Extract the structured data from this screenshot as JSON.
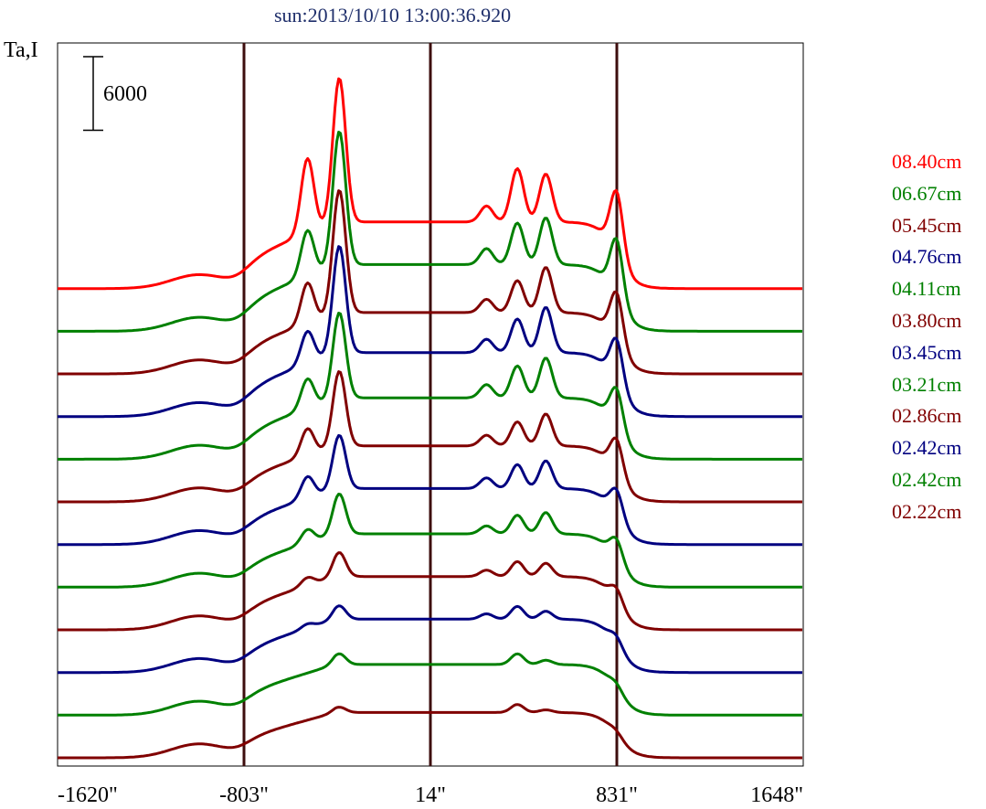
{
  "chart_data": {
    "type": "line",
    "title": "sun:2013/10/10 13:00:36.920",
    "ylabel": "Ta,I",
    "xlabel": "",
    "x_ticks": [
      "-1620\"",
      "-803\"",
      "14\"",
      "831\"",
      "1648\""
    ],
    "x_tick_values": [
      -1620,
      -803,
      14,
      831,
      1648
    ],
    "xlim": [
      -1620,
      1648
    ],
    "vertical_lines_x": [
      -803,
      14,
      831
    ],
    "scale_bar_label": "6000",
    "scale_bar_value": 6000,
    "grid": false,
    "legend_position": "right",
    "series": [
      {
        "name": "08.40cm",
        "color": "#ff0000",
        "baseline": 80000,
        "disk": 12500,
        "peaks": [
          [
            -1000,
            2600
          ],
          [
            -525,
            14000
          ],
          [
            -385,
            27000
          ],
          [
            260,
            3000
          ],
          [
            395,
            10000
          ],
          [
            520,
            9000
          ],
          [
            831,
            12000
          ]
        ]
      },
      {
        "name": "06.67cm",
        "color": "#008000",
        "baseline": 72000,
        "disk": 12500,
        "peaks": [
          [
            -1000,
            2600
          ],
          [
            -525,
            8500
          ],
          [
            -385,
            25000
          ],
          [
            260,
            3000
          ],
          [
            395,
            7800
          ],
          [
            520,
            8800
          ],
          [
            831,
            11000
          ]
        ]
      },
      {
        "name": "05.45cm",
        "color": "#800000",
        "baseline": 64000,
        "disk": 11500,
        "peaks": [
          [
            -1000,
            2600
          ],
          [
            -525,
            7500
          ],
          [
            -385,
            23000
          ],
          [
            260,
            2500
          ],
          [
            395,
            6000
          ],
          [
            520,
            8500
          ],
          [
            831,
            9500
          ]
        ]
      },
      {
        "name": "04.76cm",
        "color": "#000080",
        "baseline": 56000,
        "disk": 12000,
        "peaks": [
          [
            -1000,
            2600
          ],
          [
            -525,
            6000
          ],
          [
            -385,
            20000
          ],
          [
            260,
            2500
          ],
          [
            395,
            6300
          ],
          [
            520,
            8500
          ],
          [
            831,
            8500
          ]
        ]
      },
      {
        "name": "04.11cm",
        "color": "#008000",
        "baseline": 48000,
        "disk": 11500,
        "peaks": [
          [
            -1000,
            2600
          ],
          [
            -525,
            5500
          ],
          [
            -385,
            16000
          ],
          [
            260,
            2500
          ],
          [
            395,
            6000
          ],
          [
            520,
            7500
          ],
          [
            831,
            7500
          ]
        ]
      },
      {
        "name": "03.80cm",
        "color": "#800000",
        "baseline": 40000,
        "disk": 10500,
        "peaks": [
          [
            -1000,
            2600
          ],
          [
            -525,
            5000
          ],
          [
            -385,
            14000
          ],
          [
            260,
            2000
          ],
          [
            395,
            4500
          ],
          [
            520,
            6000
          ],
          [
            831,
            6500
          ]
        ]
      },
      {
        "name": "03.45cm",
        "color": "#000080",
        "baseline": 32000,
        "disk": 10500,
        "peaks": [
          [
            -1000,
            2600
          ],
          [
            -525,
            4000
          ],
          [
            -385,
            10000
          ],
          [
            260,
            2000
          ],
          [
            395,
            4500
          ],
          [
            520,
            5200
          ],
          [
            831,
            5000
          ]
        ]
      },
      {
        "name": "03.21cm",
        "color": "#008000",
        "baseline": 24000,
        "disk": 10000,
        "peaks": [
          [
            -1000,
            2600
          ],
          [
            -525,
            2500
          ],
          [
            -385,
            7500
          ],
          [
            260,
            1500
          ],
          [
            395,
            3500
          ],
          [
            520,
            4000
          ],
          [
            831,
            4000
          ]
        ]
      },
      {
        "name": "02.86cm",
        "color": "#800000",
        "baseline": 16000,
        "disk": 10000,
        "peaks": [
          [
            -1000,
            2600
          ],
          [
            -525,
            1500
          ],
          [
            -385,
            4500
          ],
          [
            260,
            1200
          ],
          [
            395,
            2800
          ],
          [
            520,
            2500
          ],
          [
            831,
            2800
          ]
        ]
      },
      {
        "name": "02.42cm",
        "color": "#000080",
        "baseline": 8000,
        "disk": 10000,
        "peaks": [
          [
            -1000,
            2600
          ],
          [
            -525,
            800
          ],
          [
            -385,
            2500
          ],
          [
            260,
            1000
          ],
          [
            395,
            2400
          ],
          [
            520,
            1500
          ],
          [
            831,
            1800
          ]
        ]
      },
      {
        "name": "02.42cm",
        "color": "#008000",
        "baseline": 0,
        "disk": 9500,
        "peaks": [
          [
            -1000,
            2600
          ],
          [
            -385,
            2000
          ],
          [
            395,
            2000
          ],
          [
            520,
            800
          ],
          [
            831,
            1200
          ]
        ]
      },
      {
        "name": "02.22cm",
        "color": "#800000",
        "baseline": -8000,
        "disk": 8500,
        "peaks": [
          [
            -1000,
            2600
          ],
          [
            -385,
            1000
          ],
          [
            395,
            1500
          ],
          [
            520,
            500
          ],
          [
            831,
            800
          ]
        ]
      }
    ]
  }
}
